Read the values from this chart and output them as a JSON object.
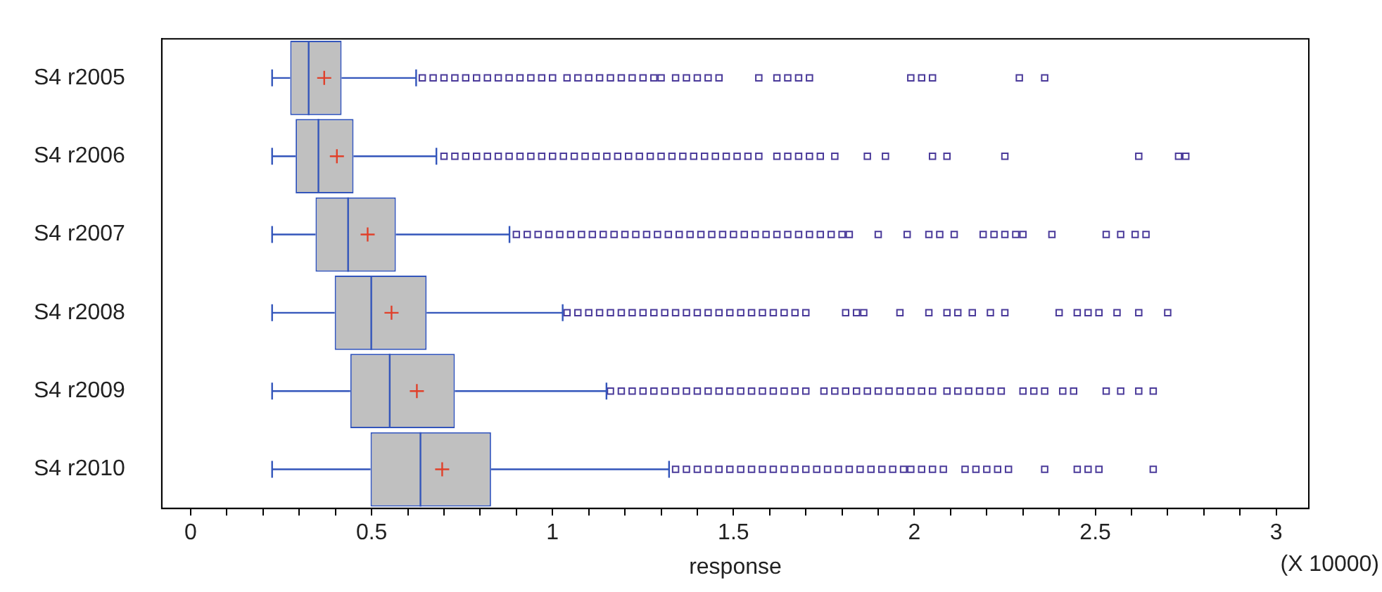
{
  "chart_data": {
    "type": "box",
    "orientation": "horizontal",
    "xlabel": "response",
    "annotations": [
      "(X 10000)"
    ],
    "categories": [
      "S4 r2005",
      "S4 r2006",
      "S4 r2007",
      "S4 r2008",
      "S4 r2009",
      "S4 r2010"
    ],
    "xlim": [
      -0.08,
      3.09
    ],
    "xticks": [
      0,
      {
        "value": 0.1,
        "label": null
      },
      {
        "value": 0.2,
        "label": null
      },
      {
        "value": 0.3,
        "label": null
      },
      {
        "value": 0.4,
        "label": null
      },
      0.5,
      {
        "value": 0.6,
        "label": null
      },
      {
        "value": 0.7,
        "label": null
      },
      {
        "value": 0.8,
        "label": null
      },
      {
        "value": 0.9,
        "label": null
      },
      1,
      {
        "value": 1.1,
        "label": null
      },
      {
        "value": 1.2,
        "label": null
      },
      {
        "value": 1.3,
        "label": null
      },
      {
        "value": 1.4,
        "label": null
      },
      1.5,
      {
        "value": 1.6,
        "label": null
      },
      {
        "value": 1.7,
        "label": null
      },
      {
        "value": 1.8,
        "label": null
      },
      {
        "value": 1.9,
        "label": null
      },
      2,
      {
        "value": 2.1,
        "label": null
      },
      {
        "value": 2.2,
        "label": null
      },
      {
        "value": 2.3,
        "label": null
      },
      {
        "value": 2.4,
        "label": null
      },
      2.5,
      {
        "value": 2.6,
        "label": null
      },
      {
        "value": 2.7,
        "label": null
      },
      {
        "value": 2.8,
        "label": null
      },
      {
        "value": 2.9,
        "label": null
      },
      3
    ],
    "marker": "square",
    "series": [
      {
        "color": "#3355bb",
        "boxes": [
          {
            "low": 0.225,
            "q1": 0.275,
            "median": 0.326,
            "q3": 0.417,
            "high": 0.623,
            "mean": 0.369,
            "outliers": [
              0.64,
              0.67,
              0.7,
              0.73,
              0.76,
              0.79,
              0.82,
              0.85,
              0.88,
              0.91,
              0.94,
              0.97,
              1.0,
              1.04,
              1.07,
              1.1,
              1.13,
              1.16,
              1.19,
              1.22,
              1.25,
              1.28,
              1.3,
              1.34,
              1.37,
              1.4,
              1.43,
              1.46,
              1.57,
              1.62,
              1.65,
              1.68,
              1.71,
              1.99,
              2.02,
              2.05,
              2.29,
              2.36
            ]
          },
          {
            "low": 0.225,
            "q1": 0.29,
            "median": 0.353,
            "q3": 0.45,
            "high": 0.679,
            "mean": 0.404,
            "outliers": [
              0.7,
              0.73,
              0.76,
              0.79,
              0.82,
              0.85,
              0.88,
              0.91,
              0.94,
              0.97,
              1.0,
              1.03,
              1.06,
              1.09,
              1.12,
              1.15,
              1.18,
              1.21,
              1.24,
              1.27,
              1.3,
              1.33,
              1.36,
              1.39,
              1.42,
              1.45,
              1.48,
              1.51,
              1.54,
              1.57,
              1.62,
              1.65,
              1.68,
              1.71,
              1.74,
              1.78,
              1.87,
              1.92,
              2.05,
              2.09,
              2.25,
              2.62,
              2.73,
              2.75
            ]
          },
          {
            "low": 0.225,
            "q1": 0.345,
            "median": 0.435,
            "q3": 0.567,
            "high": 0.881,
            "mean": 0.489,
            "outliers": [
              0.9,
              0.93,
              0.96,
              0.99,
              1.02,
              1.05,
              1.08,
              1.11,
              1.14,
              1.17,
              1.2,
              1.23,
              1.26,
              1.29,
              1.32,
              1.35,
              1.38,
              1.41,
              1.44,
              1.47,
              1.5,
              1.53,
              1.56,
              1.59,
              1.62,
              1.65,
              1.68,
              1.71,
              1.74,
              1.77,
              1.8,
              1.82,
              1.9,
              1.98,
              2.04,
              2.07,
              2.11,
              2.19,
              2.22,
              2.25,
              2.28,
              2.3,
              2.38,
              2.53,
              2.57,
              2.61,
              2.64
            ]
          },
          {
            "low": 0.225,
            "q1": 0.398,
            "median": 0.499,
            "q3": 0.652,
            "high": 1.028,
            "mean": 0.555,
            "outliers": [
              1.04,
              1.07,
              1.1,
              1.13,
              1.16,
              1.19,
              1.22,
              1.25,
              1.28,
              1.31,
              1.34,
              1.37,
              1.4,
              1.43,
              1.46,
              1.49,
              1.52,
              1.55,
              1.58,
              1.61,
              1.64,
              1.67,
              1.7,
              1.81,
              1.84,
              1.86,
              1.96,
              2.04,
              2.09,
              2.12,
              2.16,
              2.21,
              2.25,
              2.4,
              2.45,
              2.48,
              2.51,
              2.56,
              2.62,
              2.7
            ]
          },
          {
            "low": 0.225,
            "q1": 0.441,
            "median": 0.55,
            "q3": 0.73,
            "high": 1.149,
            "mean": 0.625,
            "outliers": [
              1.16,
              1.19,
              1.22,
              1.25,
              1.28,
              1.31,
              1.34,
              1.37,
              1.4,
              1.43,
              1.46,
              1.49,
              1.52,
              1.55,
              1.58,
              1.61,
              1.64,
              1.67,
              1.7,
              1.75,
              1.78,
              1.81,
              1.84,
              1.87,
              1.9,
              1.93,
              1.96,
              1.99,
              2.02,
              2.05,
              2.09,
              2.12,
              2.15,
              2.18,
              2.21,
              2.24,
              2.3,
              2.33,
              2.36,
              2.41,
              2.44,
              2.53,
              2.57,
              2.62,
              2.66
            ]
          },
          {
            "low": 0.225,
            "q1": 0.497,
            "median": 0.635,
            "q3": 0.83,
            "high": 1.322,
            "mean": 0.695,
            "outliers": [
              1.34,
              1.37,
              1.4,
              1.43,
              1.46,
              1.49,
              1.52,
              1.55,
              1.58,
              1.61,
              1.64,
              1.67,
              1.7,
              1.73,
              1.76,
              1.79,
              1.82,
              1.85,
              1.88,
              1.91,
              1.94,
              1.97,
              1.99,
              2.02,
              2.05,
              2.08,
              2.14,
              2.17,
              2.2,
              2.23,
              2.26,
              2.36,
              2.45,
              2.48,
              2.51,
              2.66
            ]
          }
        ]
      }
    ]
  }
}
